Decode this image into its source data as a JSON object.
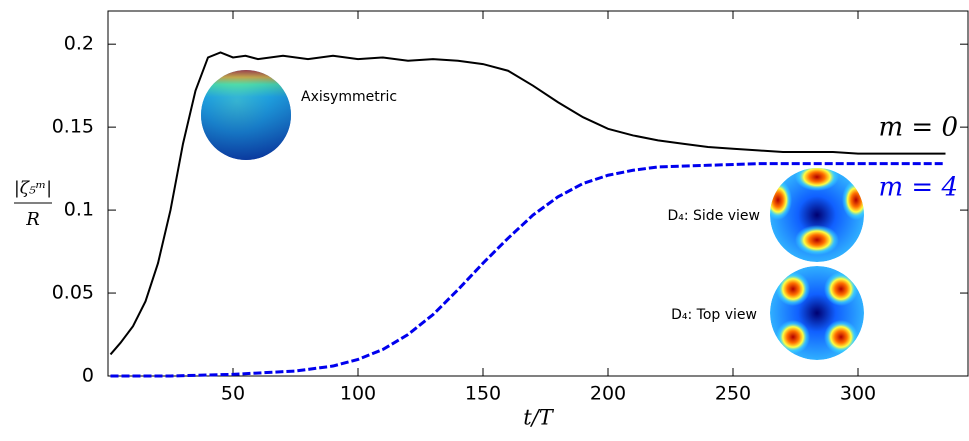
{
  "chart_data": {
    "type": "line",
    "x_label": "t/T",
    "y_label": {
      "numerator": "|ζ₅ᵐ|",
      "denominator": "R"
    },
    "xlim": [
      0,
      344
    ],
    "ylim": [
      0,
      0.22
    ],
    "xticks": [
      50,
      100,
      150,
      200,
      250,
      300
    ],
    "yticks": [
      0,
      0.05,
      0.1,
      0.15,
      0.2
    ],
    "annotations": [
      "Axisymmetric",
      "D₄: Side view",
      "D₄: Top view"
    ],
    "series": [
      {
        "name": "m = 0",
        "color": "#000000",
        "dash": false,
        "x": [
          1,
          5,
          10,
          15,
          20,
          25,
          30,
          35,
          40,
          45,
          50,
          55,
          60,
          70,
          80,
          90,
          100,
          110,
          120,
          130,
          140,
          150,
          160,
          170,
          180,
          190,
          200,
          210,
          220,
          230,
          240,
          250,
          260,
          270,
          280,
          290,
          300,
          310,
          320,
          335
        ],
        "values": [
          0.013,
          0.02,
          0.03,
          0.045,
          0.068,
          0.1,
          0.14,
          0.172,
          0.192,
          0.195,
          0.192,
          0.193,
          0.191,
          0.193,
          0.191,
          0.193,
          0.191,
          0.192,
          0.19,
          0.191,
          0.19,
          0.188,
          0.184,
          0.175,
          0.165,
          0.156,
          0.149,
          0.145,
          0.142,
          0.14,
          0.138,
          0.137,
          0.136,
          0.135,
          0.135,
          0.135,
          0.134,
          0.134,
          0.134,
          0.134
        ]
      },
      {
        "name": "m = 4",
        "color": "#0000ee",
        "dash": true,
        "x": [
          1,
          25,
          50,
          75,
          90,
          100,
          110,
          120,
          130,
          140,
          150,
          160,
          170,
          180,
          190,
          200,
          210,
          220,
          240,
          260,
          280,
          300,
          335
        ],
        "values": [
          0,
          0,
          0.001,
          0.003,
          0.006,
          0.01,
          0.016,
          0.025,
          0.037,
          0.052,
          0.068,
          0.083,
          0.097,
          0.108,
          0.116,
          0.121,
          0.124,
          0.126,
          0.127,
          0.128,
          0.128,
          0.128,
          0.128
        ]
      }
    ]
  }
}
